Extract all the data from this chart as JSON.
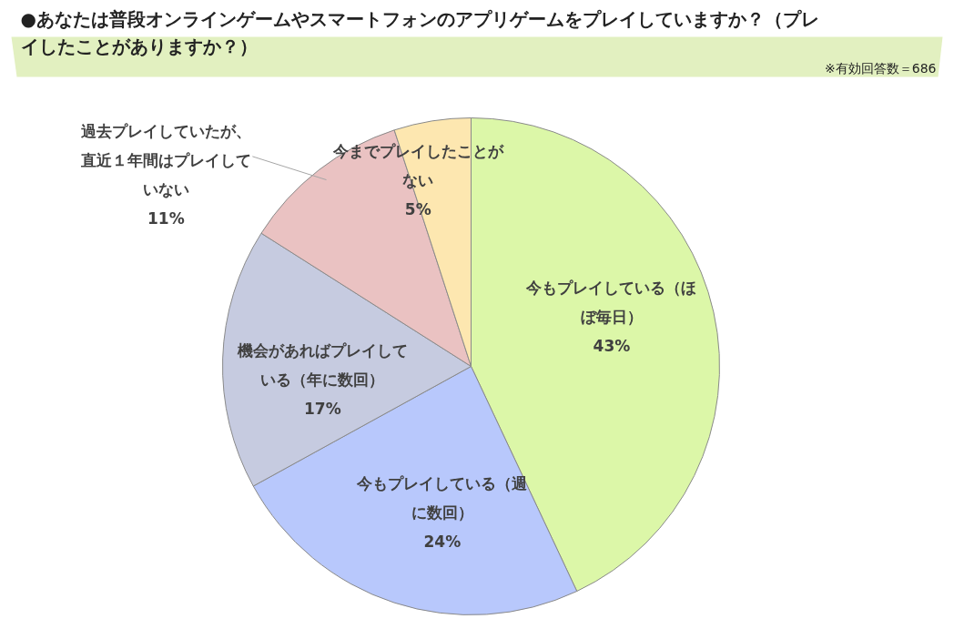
{
  "chart_data": {
    "type": "pie",
    "title": "●あなたは普段オンラインゲームやスマートフォンのアプリゲームをプレイしていますか？（プレイしたことがありますか？）",
    "annotations": [
      "※有効回答数＝686"
    ],
    "categories": [
      "今もプレイしている（ほぼ毎日）",
      "今もプレイしている（週に数回）",
      "機会があればプレイしている（年に数回）",
      "過去プレイしていたが、直近１年間はプレイしていない",
      "今までプレイしたことがない"
    ],
    "values": [
      43,
      24,
      17,
      11,
      5
    ],
    "colors": [
      "#dcf7a8",
      "#b8c8fc",
      "#c6cbe0",
      "#eac2c2",
      "#fde7b0"
    ],
    "value_labels": [
      "43%",
      "24%",
      "17%",
      "11%",
      "5%"
    ]
  }
}
